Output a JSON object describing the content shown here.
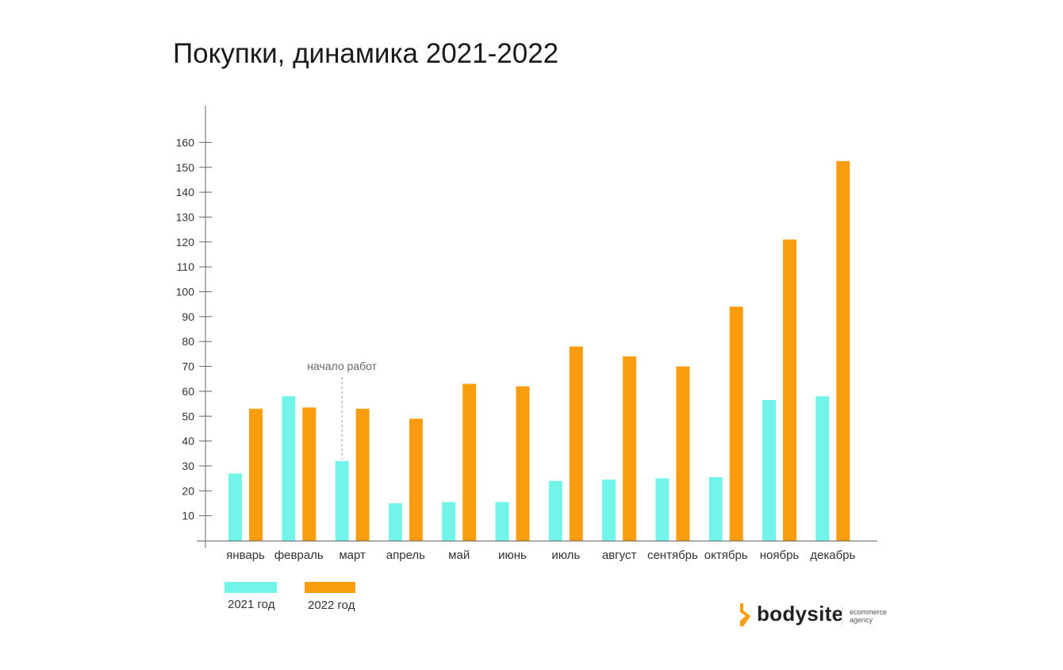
{
  "page": {
    "title": "Покупки, динамика 2021-2022"
  },
  "chart_data": {
    "type": "bar",
    "title": "Покупки, динамика 2021-2022",
    "xlabel": "",
    "ylabel": "",
    "categories": [
      "январь",
      "февраль",
      "март",
      "апрель",
      "май",
      "июнь",
      "июль",
      "август",
      "сентябрь",
      "октябрь",
      "ноябрь",
      "декабрь"
    ],
    "series": [
      {
        "name": "2021 год",
        "color": "#72F5E8",
        "values": [
          27,
          58,
          32,
          15,
          15.5,
          15.5,
          24,
          24.5,
          25,
          25.5,
          56.5,
          58
        ]
      },
      {
        "name": "2022 год",
        "color": "#F99D0F",
        "values": [
          53,
          53.5,
          53,
          49,
          63,
          62,
          78,
          74,
          70,
          94,
          121,
          152.5
        ]
      }
    ],
    "yticks": [
      10,
      20,
      30,
      40,
      50,
      60,
      70,
      80,
      90,
      100,
      110,
      120,
      130,
      140,
      150,
      160
    ],
    "ylim": [
      0,
      175
    ],
    "grid": false,
    "legend_position": "bottom-left",
    "annotation": {
      "text": "начало работ",
      "category": "март"
    },
    "axis_color": "#666666"
  },
  "logo": {
    "name": "bodysite",
    "tagline_line1": "ecommerce",
    "tagline_line2": "agency",
    "color": "#F99D0F"
  }
}
